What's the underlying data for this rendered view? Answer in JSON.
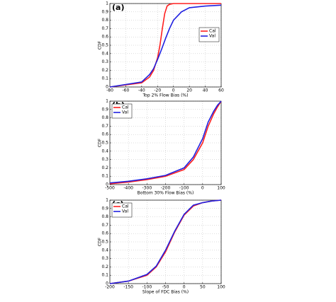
{
  "chart_data": [
    {
      "type": "line",
      "title": "(a)",
      "xlabel": "Top 2% Flow Bias (%)",
      "ylabel": "CDF",
      "xlim": [
        -80,
        60
      ],
      "xticks": [
        -80,
        -60,
        -40,
        -20,
        0,
        20,
        40,
        60
      ],
      "ylim": [
        0,
        1
      ],
      "yticks": [
        0,
        0.1,
        0.2,
        0.3,
        0.4,
        0.5,
        0.6,
        0.7,
        0.8,
        0.9,
        1
      ],
      "grid": true,
      "legend": "center right",
      "series": [
        {
          "name": "Cal",
          "color": "#ff2020",
          "x": [
            -80,
            -40,
            -30,
            -25,
            -20,
            -17,
            -14,
            -11,
            -8,
            -5,
            0,
            60
          ],
          "values": [
            0,
            0.05,
            0.12,
            0.2,
            0.35,
            0.5,
            0.7,
            0.88,
            0.97,
            0.99,
            1,
            1
          ]
        },
        {
          "name": "Val",
          "color": "#2020e0",
          "x": [
            -80,
            -40,
            -30,
            -25,
            -20,
            -15,
            -10,
            -5,
            0,
            10,
            20,
            40,
            60
          ],
          "values": [
            0,
            0.06,
            0.15,
            0.22,
            0.33,
            0.45,
            0.58,
            0.7,
            0.8,
            0.9,
            0.95,
            0.97,
            0.98
          ]
        }
      ]
    },
    {
      "type": "line",
      "title": "(b)",
      "xlabel": "Bottom 30% Flow Bias (%)",
      "ylabel": "CDF",
      "xlim": [
        -500,
        100
      ],
      "xticks": [
        -500,
        -400,
        -300,
        -200,
        -100,
        0,
        100
      ],
      "ylim": [
        0,
        1
      ],
      "yticks": [
        0,
        0.1,
        0.2,
        0.3,
        0.4,
        0.5,
        0.6,
        0.7,
        0.8,
        0.9,
        1
      ],
      "grid": true,
      "legend": "upper left",
      "series": [
        {
          "name": "Cal",
          "color": "#ff2020",
          "x": [
            -500,
            -400,
            -300,
            -200,
            -100,
            -50,
            0,
            30,
            60,
            80,
            100
          ],
          "values": [
            0.01,
            0.03,
            0.06,
            0.1,
            0.18,
            0.3,
            0.5,
            0.7,
            0.85,
            0.93,
            1
          ]
        },
        {
          "name": "Val",
          "color": "#2020e0",
          "x": [
            -500,
            -400,
            -300,
            -200,
            -100,
            -50,
            0,
            30,
            60,
            80,
            100
          ],
          "values": [
            0.02,
            0.04,
            0.07,
            0.11,
            0.2,
            0.33,
            0.55,
            0.75,
            0.88,
            0.95,
            1
          ]
        }
      ]
    },
    {
      "type": "line",
      "title": "(c)",
      "xlabel": "Slope of FDC Bias (%)",
      "ylabel": "CDF",
      "xlim": [
        -200,
        100
      ],
      "xticks": [
        -200,
        -150,
        -100,
        -50,
        0,
        50,
        100
      ],
      "ylim": [
        0,
        1
      ],
      "yticks": [
        0,
        0.1,
        0.2,
        0.3,
        0.4,
        0.5,
        0.6,
        0.7,
        0.8,
        0.9,
        1
      ],
      "grid": true,
      "legend": "upper left",
      "series": [
        {
          "name": "Cal",
          "color": "#ff2020",
          "x": [
            -200,
            -150,
            -100,
            -75,
            -50,
            -25,
            0,
            25,
            50,
            75,
            100
          ],
          "values": [
            0,
            0.03,
            0.1,
            0.2,
            0.38,
            0.62,
            0.82,
            0.93,
            0.97,
            0.99,
            1
          ]
        },
        {
          "name": "Val",
          "color": "#2020e0",
          "x": [
            -200,
            -150,
            -100,
            -75,
            -50,
            -25,
            0,
            25,
            50,
            75,
            100
          ],
          "values": [
            0,
            0.03,
            0.11,
            0.21,
            0.4,
            0.63,
            0.83,
            0.94,
            0.97,
            0.99,
            1
          ]
        }
      ]
    }
  ]
}
